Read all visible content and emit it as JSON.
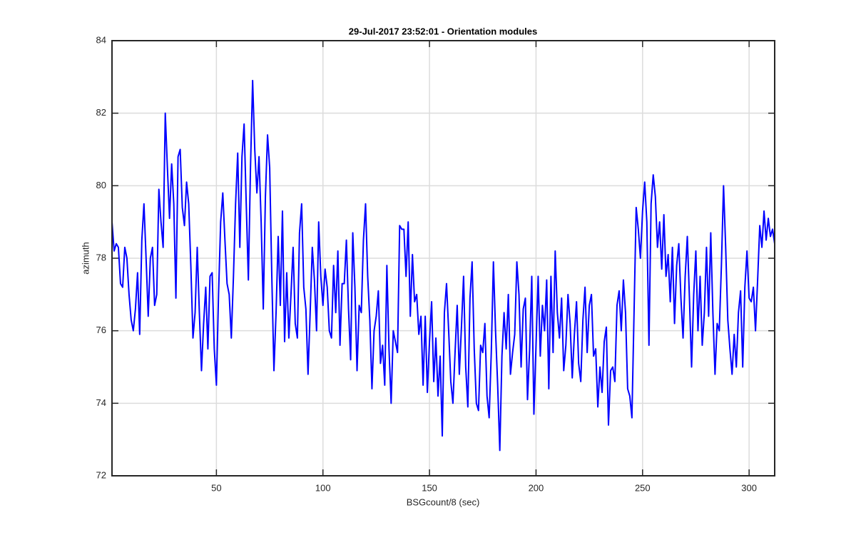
{
  "chart_data": {
    "type": "line",
    "title": "29-Jul-2017 23:52:01 - Orientation modules",
    "xlabel": "BSGcount/8 (sec)",
    "ylabel": "azimuth",
    "color": "#0000ff",
    "grid": true,
    "xlim": [
      1,
      312
    ],
    "ylim": [
      72,
      84
    ],
    "xticks": [
      50,
      100,
      150,
      200,
      250,
      300
    ],
    "yticks": [
      72,
      74,
      76,
      78,
      80,
      82,
      84
    ],
    "x": [
      1,
      2,
      3,
      4,
      5,
      6,
      7,
      8,
      9,
      10,
      11,
      12,
      13,
      14,
      15,
      16,
      17,
      18,
      19,
      20,
      21,
      22,
      23,
      24,
      25,
      26,
      27,
      28,
      29,
      30,
      31,
      32,
      33,
      34,
      35,
      36,
      37,
      38,
      39,
      40,
      41,
      42,
      43,
      44,
      45,
      46,
      47,
      48,
      49,
      50,
      51,
      52,
      53,
      54,
      55,
      56,
      57,
      58,
      59,
      60,
      61,
      62,
      63,
      64,
      65,
      66,
      67,
      68,
      69,
      70,
      71,
      72,
      73,
      74,
      75,
      76,
      77,
      78,
      79,
      80,
      81,
      82,
      83,
      84,
      85,
      86,
      87,
      88,
      89,
      90,
      91,
      92,
      93,
      94,
      95,
      96,
      97,
      98,
      99,
      100,
      101,
      102,
      103,
      104,
      105,
      106,
      107,
      108,
      109,
      110,
      111,
      112,
      113,
      114,
      115,
      116,
      117,
      118,
      119,
      120,
      121,
      122,
      123,
      124,
      125,
      126,
      127,
      128,
      129,
      130,
      131,
      132,
      133,
      134,
      135,
      136,
      137,
      138,
      139,
      140,
      141,
      142,
      143,
      144,
      145,
      146,
      147,
      148,
      149,
      150,
      151,
      152,
      153,
      154,
      155,
      156,
      157,
      158,
      159,
      160,
      161,
      162,
      163,
      164,
      165,
      166,
      167,
      168,
      169,
      170,
      171,
      172,
      173,
      174,
      175,
      176,
      177,
      178,
      179,
      180,
      181,
      182,
      183,
      184,
      185,
      186,
      187,
      188,
      189,
      190,
      191,
      192,
      193,
      194,
      195,
      196,
      197,
      198,
      199,
      200,
      201,
      202,
      203,
      204,
      205,
      206,
      207,
      208,
      209,
      210,
      211,
      212,
      213,
      214,
      215,
      216,
      217,
      218,
      219,
      220,
      221,
      222,
      223,
      224,
      225,
      226,
      227,
      228,
      229,
      230,
      231,
      232,
      233,
      234,
      235,
      236,
      237,
      238,
      239,
      240,
      241,
      242,
      243,
      244,
      245,
      246,
      247,
      248,
      249,
      250,
      251,
      252,
      253,
      254,
      255,
      256,
      257,
      258,
      259,
      260,
      261,
      262,
      263,
      264,
      265,
      266,
      267,
      268,
      269,
      270,
      271,
      272,
      273,
      274,
      275,
      276,
      277,
      278,
      279,
      280,
      281,
      282,
      283,
      284,
      285,
      286,
      287,
      288,
      289,
      290,
      291,
      292,
      293,
      294,
      295,
      296,
      297,
      298,
      299,
      300,
      301,
      302,
      303,
      304,
      305,
      306,
      307,
      308,
      309,
      310,
      311,
      312
    ],
    "values": [
      79.0,
      78.2,
      78.4,
      78.3,
      77.3,
      77.2,
      78.3,
      78.0,
      77.0,
      76.3,
      76.0,
      76.6,
      77.6,
      75.9,
      78.5,
      79.5,
      78.0,
      76.4,
      78.0,
      78.3,
      76.7,
      77.0,
      79.9,
      79.0,
      78.3,
      82.0,
      80.5,
      79.1,
      80.6,
      79.5,
      76.9,
      80.8,
      81.0,
      79.4,
      78.9,
      80.1,
      79.5,
      77.8,
      75.8,
      76.5,
      78.3,
      76.5,
      74.9,
      76.2,
      77.2,
      75.5,
      77.5,
      77.6,
      75.5,
      74.5,
      77.0,
      79.0,
      79.8,
      78.5,
      77.3,
      77.0,
      75.8,
      77.5,
      79.5,
      80.9,
      78.3,
      80.8,
      81.7,
      79.5,
      77.4,
      80.5,
      82.9,
      81.0,
      79.8,
      80.8,
      79.0,
      76.6,
      79.7,
      81.4,
      80.5,
      77.5,
      74.9,
      76.5,
      78.6,
      76.7,
      79.3,
      75.7,
      77.6,
      75.8,
      77.0,
      78.3,
      76.2,
      75.8,
      78.7,
      79.5,
      77.2,
      76.6,
      74.8,
      76.5,
      78.3,
      77.4,
      76.0,
      79.0,
      77.5,
      76.7,
      77.7,
      77.2,
      76.0,
      75.8,
      77.8,
      76.5,
      78.2,
      75.6,
      77.3,
      77.3,
      78.5,
      76.6,
      75.2,
      78.7,
      77.2,
      74.9,
      76.7,
      76.5,
      78.5,
      79.5,
      77.5,
      76.3,
      74.4,
      76.0,
      76.4,
      77.1,
      75.1,
      75.6,
      74.5,
      77.8,
      75.5,
      74.0,
      76.0,
      75.7,
      75.4,
      78.9,
      78.8,
      78.8,
      77.5,
      79.0,
      76.4,
      78.1,
      76.8,
      77.0,
      75.9,
      76.4,
      74.5,
      76.4,
      74.3,
      75.7,
      76.8,
      74.6,
      75.8,
      74.2,
      75.3,
      73.1,
      76.5,
      77.3,
      76.0,
      74.6,
      74.0,
      75.4,
      76.7,
      74.8,
      76.1,
      77.5,
      75.0,
      73.9,
      76.9,
      77.9,
      75.5,
      74.0,
      73.8,
      75.6,
      75.4,
      76.2,
      74.2,
      73.6,
      75.4,
      77.9,
      76.0,
      74.5,
      72.7,
      75.3,
      76.5,
      75.5,
      77.0,
      74.8,
      75.4,
      75.9,
      77.9,
      77.0,
      75.0,
      76.6,
      76.9,
      74.1,
      75.5,
      77.5,
      73.7,
      75.6,
      77.5,
      75.3,
      76.7,
      76.0,
      77.4,
      74.4,
      77.5,
      75.4,
      78.2,
      76.5,
      75.8,
      76.9,
      74.9,
      75.6,
      77.0,
      76.2,
      74.7,
      75.9,
      76.8,
      75.1,
      74.6,
      76.3,
      77.2,
      75.4,
      76.7,
      77.0,
      75.3,
      75.5,
      73.9,
      75.0,
      74.3,
      75.7,
      76.1,
      73.4,
      74.9,
      75.0,
      74.6,
      76.7,
      77.1,
      76.0,
      77.4,
      76.5,
      74.4,
      74.2,
      73.6,
      76.5,
      79.4,
      78.8,
      78.0,
      79.3,
      80.1,
      79.0,
      75.6,
      79.5,
      80.3,
      79.7,
      78.3,
      79.0,
      77.7,
      79.2,
      77.5,
      78.1,
      76.8,
      78.3,
      76.2,
      77.8,
      78.4,
      76.9,
      75.8,
      77.5,
      78.6,
      76.9,
      75.0,
      77.0,
      78.2,
      76.0,
      77.5,
      75.6,
      76.5,
      78.3,
      76.4,
      78.7,
      76.5,
      74.8,
      76.2,
      76.0,
      77.8,
      80.0,
      78.3,
      76.3,
      75.5,
      74.8,
      75.9,
      75.0,
      76.5,
      77.1,
      75.0,
      77.2,
      78.2,
      76.9,
      76.8,
      77.2,
      76.0,
      77.4,
      78.9,
      78.3,
      79.3,
      78.5,
      79.1,
      78.6,
      78.8,
      78.4
    ]
  }
}
